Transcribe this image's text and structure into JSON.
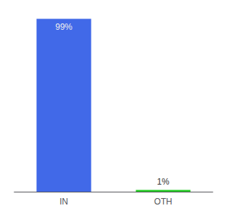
{
  "chart_data": {
    "type": "bar",
    "categories": [
      "IN",
      "OTH"
    ],
    "values": [
      99,
      1
    ],
    "value_labels": [
      "99%",
      "1%"
    ],
    "data_labels": true,
    "colors": [
      "#4169e8",
      "#22cc22"
    ],
    "ylim": [
      0,
      100
    ],
    "tick_labels": "x",
    "grid": false
  }
}
